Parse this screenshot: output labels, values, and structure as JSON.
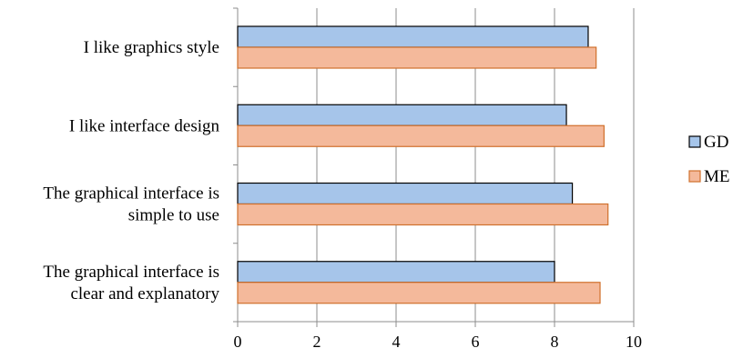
{
  "chart_data": {
    "type": "bar",
    "orientation": "horizontal",
    "categories": [
      "I like graphics style",
      "I like interface design",
      "The graphical interface is simple to use",
      "The graphical interface is clear and explanatory"
    ],
    "category_label_lines": [
      [
        "I like graphics style"
      ],
      [
        "I like interface design"
      ],
      [
        "The graphical interface is",
        "simple to use"
      ],
      [
        "The graphical interface is",
        "clear and explanatory"
      ]
    ],
    "series": [
      {
        "name": "GD",
        "values": [
          8.85,
          8.3,
          8.45,
          8.0
        ],
        "fill": "#a6c5ea",
        "stroke": "#000000"
      },
      {
        "name": "ME",
        "values": [
          9.05,
          9.25,
          9.35,
          9.15
        ],
        "fill": "#f4b99b",
        "stroke": "#d0702c"
      }
    ],
    "xlim": [
      0,
      10
    ],
    "xticks": [
      "0",
      "2",
      "4",
      "6",
      "8",
      "10"
    ],
    "xtick_values": [
      0,
      2,
      4,
      6,
      8,
      10
    ],
    "grid": true,
    "legend": "right",
    "title": "",
    "xlabel": "",
    "ylabel": ""
  }
}
